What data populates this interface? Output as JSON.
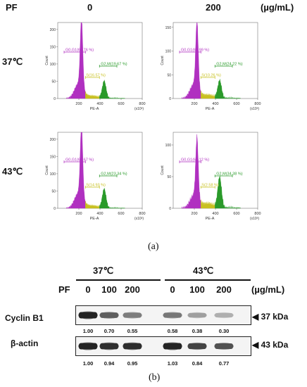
{
  "panel_a": {
    "pf_label": "PF",
    "col_headers": [
      "0",
      "200"
    ],
    "unit": "(µg/mL)",
    "row_labels": [
      "37℃",
      "43℃"
    ],
    "caption": "(a)",
    "axis": {
      "xlabel": "PE-A",
      "ylabel": "Count",
      "xticks": [
        "200",
        "400",
        "600",
        "800"
      ],
      "xscale": "(x10³)"
    },
    "histograms": [
      {
        "id": "37-0",
        "yticks": [
          "0",
          "50",
          "100",
          "150",
          "200"
        ],
        "ymax": 220,
        "g0g1": "G0,G1(63.76 %)",
        "s": "S(16.57 %)",
        "g2m": "G2,M(19.67 %)",
        "g0g1_peak": 200,
        "g2m_peak": 50
      },
      {
        "id": "37-200",
        "yticks": [
          "0",
          "50",
          "100",
          "150"
        ],
        "ymax": 160,
        "g0g1": "G0,G1(65.99 %)",
        "s": "S(10.26 %)",
        "g2m": "G2,M(24.22 %)",
        "g0g1_peak": 140,
        "g2m_peak": 37
      },
      {
        "id": "43-0",
        "yticks": [
          "0",
          "50",
          "100",
          "150",
          "200"
        ],
        "ymax": 220,
        "g0g1": "G0,G1(61.67 %)",
        "s": "S(14.93 %)",
        "g2m": "G2,M(23.34 %)",
        "g0g1_peak": 205,
        "g2m_peak": 55
      },
      {
        "id": "43-200",
        "yticks": [
          "0",
          "50",
          "100"
        ],
        "ymax": 120,
        "g0g1": "G0,G1(62.12 %)",
        "s": "S(2.58 %)",
        "g2m": "G2,M(34.38 %)",
        "g0g1_peak": 95,
        "g2m_peak": 48
      }
    ]
  },
  "panel_b": {
    "temps": [
      "37℃",
      "43℃"
    ],
    "pf_label": "PF",
    "doses": [
      "0",
      "100",
      "200",
      "0",
      "100",
      "200"
    ],
    "unit": "(µg/mL)",
    "blots": [
      {
        "name": "Cyclin B1",
        "kda": "37 kDa",
        "values": [
          "1.00",
          "0.70",
          "0.55",
          "0.58",
          "0.38",
          "0.30"
        ],
        "intensity": [
          1.0,
          0.7,
          0.55,
          0.58,
          0.38,
          0.3
        ]
      },
      {
        "name": "β-actin",
        "kda": "43 kDa",
        "values": [
          "1.00",
          "0.94",
          "0.95",
          "1.03",
          "0.84",
          "0.77"
        ],
        "intensity": [
          1.0,
          0.94,
          0.95,
          1.0,
          0.84,
          0.77
        ]
      }
    ],
    "caption": "(b)"
  },
  "colors": {
    "g0g1": "#b030c0",
    "s": "#c8c020",
    "g2m": "#2a9a2a"
  }
}
